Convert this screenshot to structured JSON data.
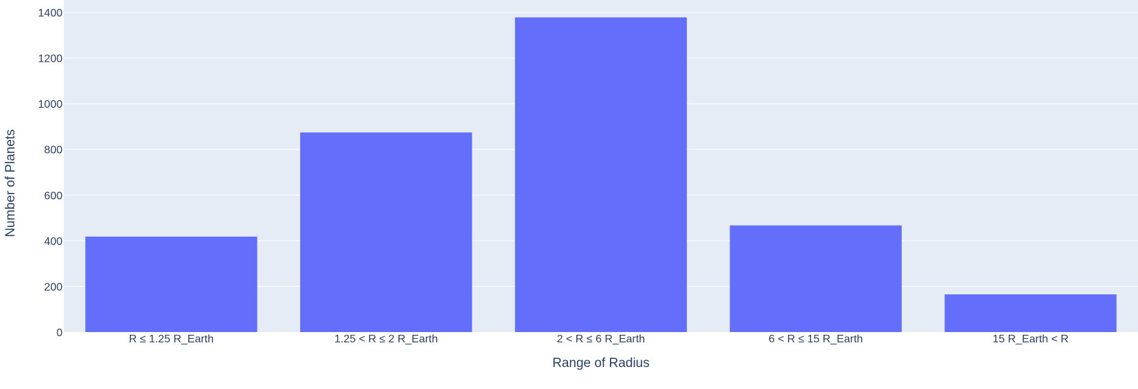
{
  "chart_data": {
    "type": "bar",
    "categories": [
      "R ≤ 1.25 R_Earth",
      "1.25 < R ≤ 2 R_Earth",
      "2 < R ≤ 6 R_Earth",
      "6 < R ≤ 15 R_Earth",
      "15 R_Earth < R"
    ],
    "values": [
      418,
      874,
      1378,
      467,
      165
    ],
    "xlabel": "Range of Radius",
    "ylabel": "Number of Planets",
    "ylim": [
      0,
      1400
    ],
    "yticks": [
      0,
      200,
      400,
      600,
      800,
      1000,
      1200,
      1400
    ],
    "grid": true,
    "colors": {
      "bar": "#636efa",
      "plot_background": "#e5ecf6",
      "gridline": "#ffffff",
      "text": "#2a3f5f"
    }
  }
}
